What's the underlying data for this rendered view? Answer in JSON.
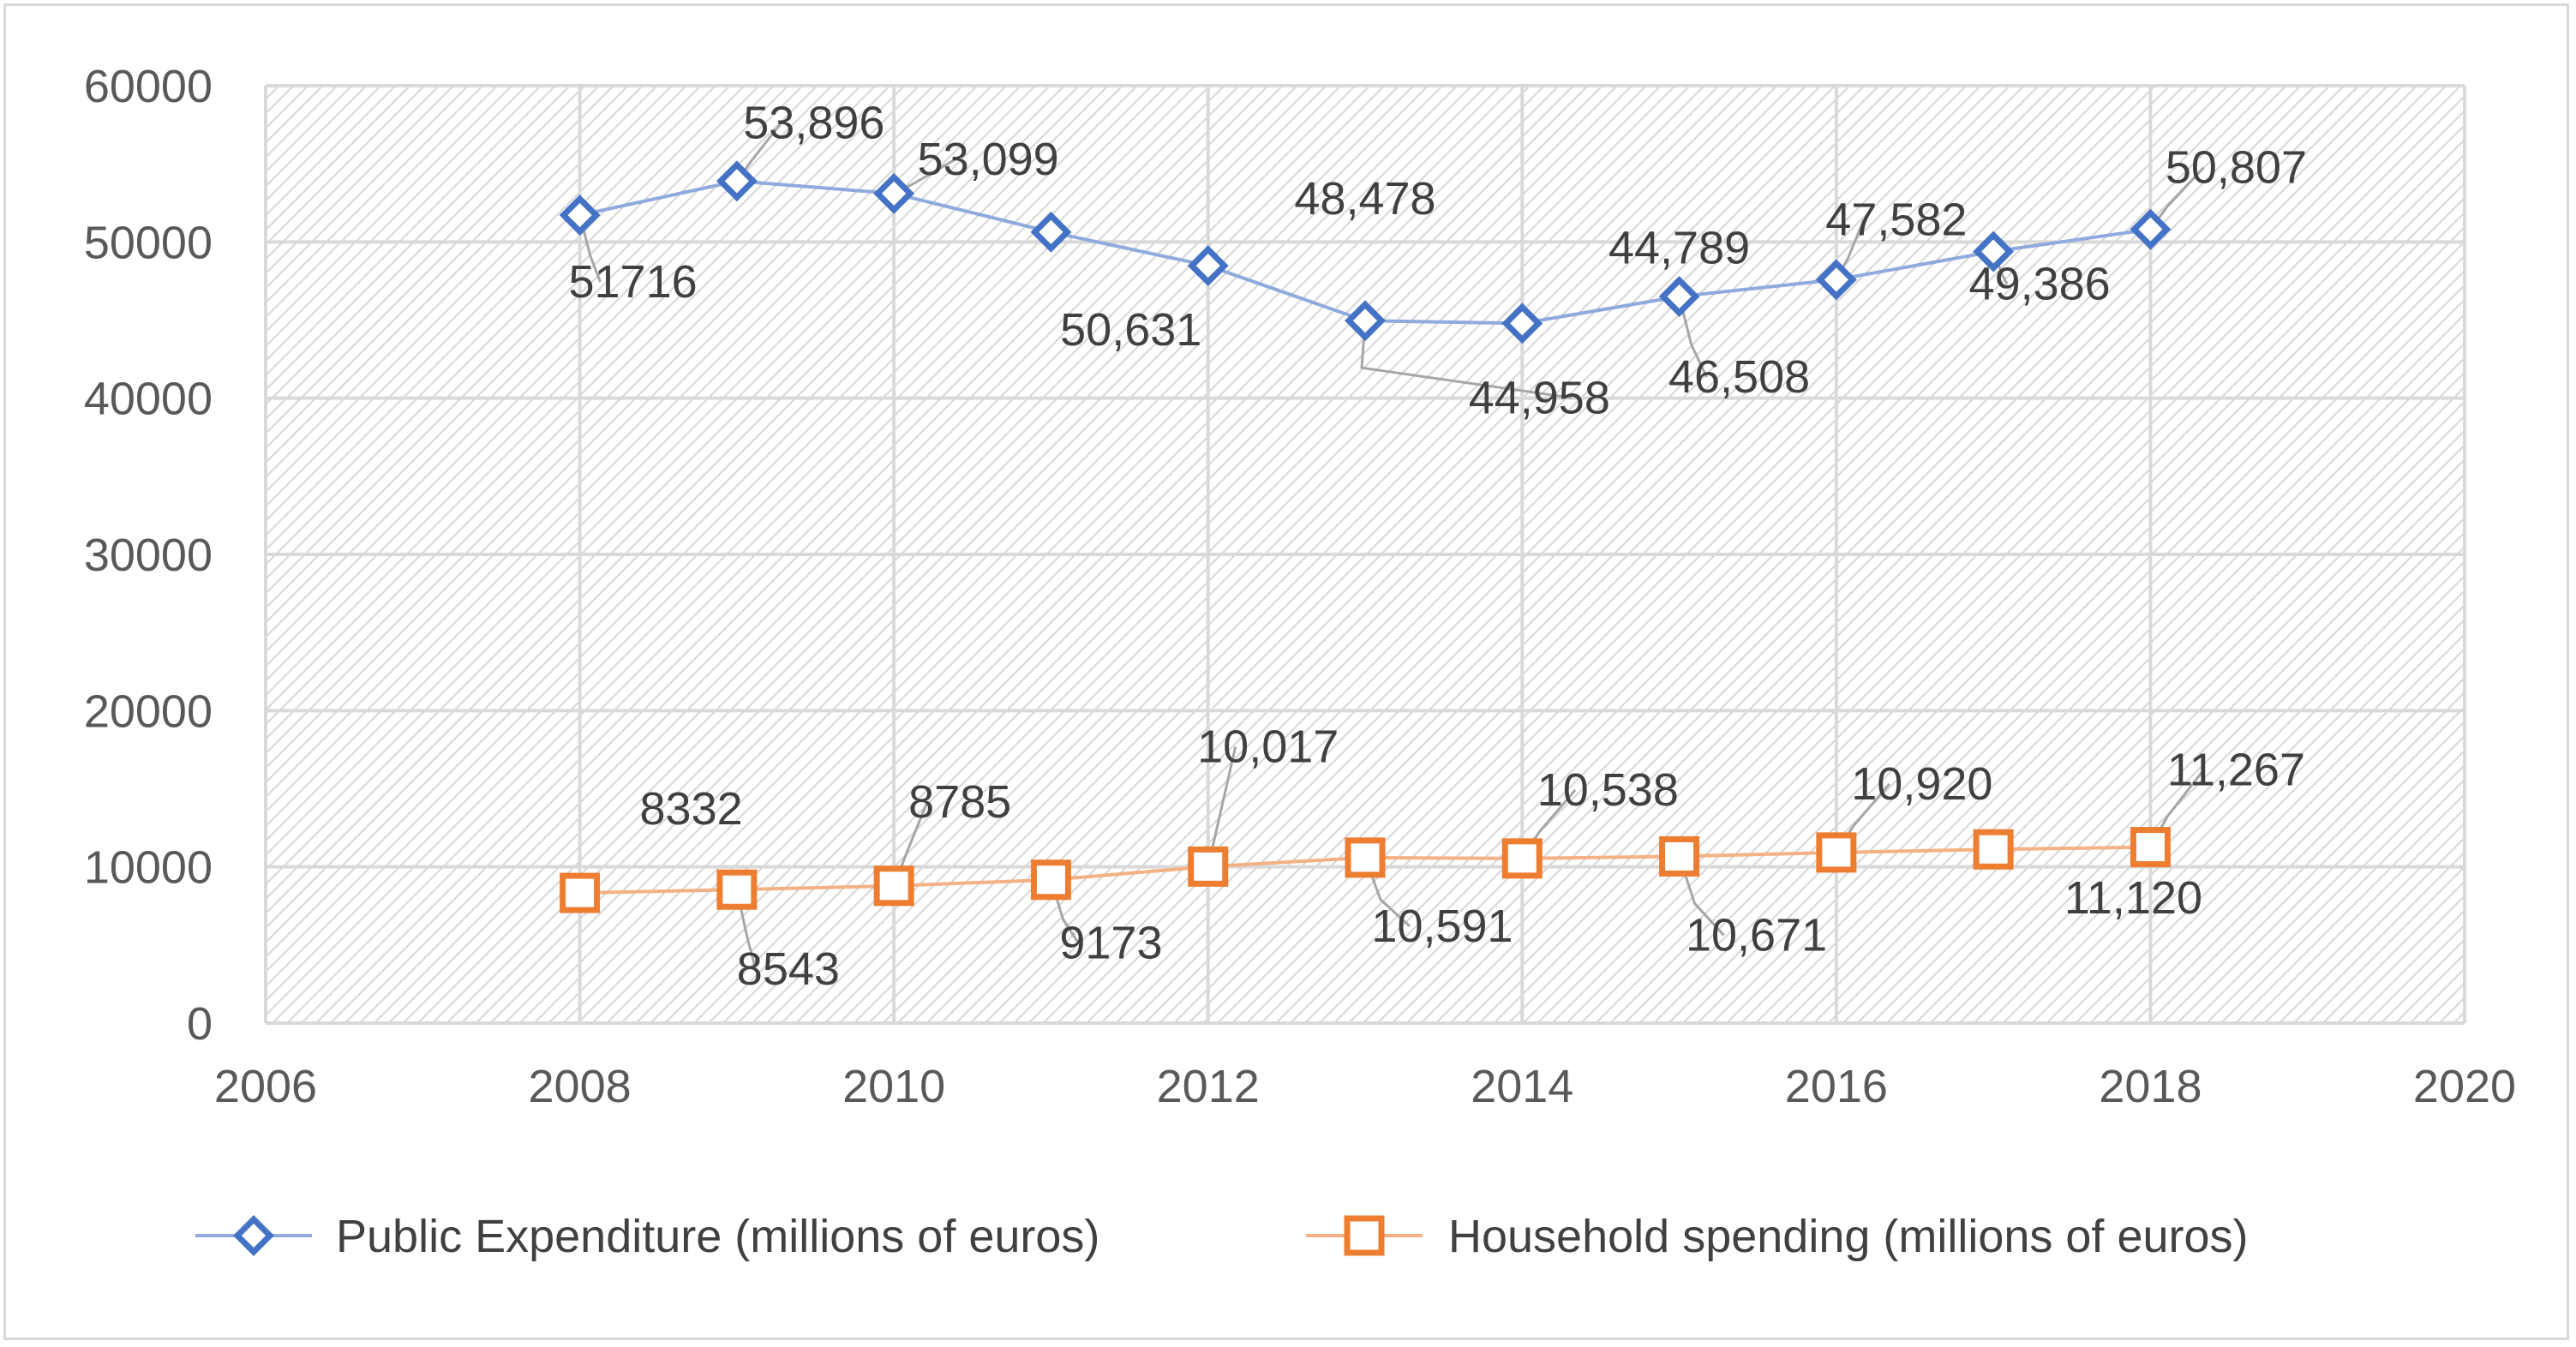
{
  "chart_data": {
    "type": "line",
    "title": "",
    "xlabel": "",
    "ylabel": "",
    "xlim": [
      2006,
      2020
    ],
    "ylim": [
      0,
      60000
    ],
    "x_ticks": [
      "2006",
      "2008",
      "2010",
      "2012",
      "2014",
      "2016",
      "2018",
      "2020"
    ],
    "y_ticks": [
      "0",
      "10000",
      "20000",
      "30000",
      "40000",
      "50000",
      "60000"
    ],
    "grid": true,
    "legend_position": "bottom",
    "x": [
      2008,
      2009,
      2010,
      2011,
      2012,
      2013,
      2014,
      2015,
      2016,
      2017,
      2018
    ],
    "series": [
      {
        "name": "Public Expenditure (millions of euros)",
        "color": "#4472c4",
        "line_color": "#8faadc",
        "marker": "diamond",
        "values": [
          51716,
          53896,
          53099,
          50631,
          48478,
          44958,
          44789,
          46508,
          47582,
          49386,
          50807
        ],
        "labels": [
          "51716",
          "53,896",
          "53,099",
          "50,631",
          "48,478",
          "44,958",
          "44,789",
          "46,508",
          "47,582",
          "49,386",
          "50,807"
        ]
      },
      {
        "name": "Household spending (millions of euros)",
        "color": "#ed7d31",
        "line_color": "#f4b183",
        "marker": "square",
        "values": [
          8332,
          8543,
          8785,
          9173,
          10017,
          10591,
          10538,
          10671,
          10920,
          11120,
          11267
        ],
        "labels": [
          "8332",
          "8543",
          "8785",
          "9173",
          "10,017",
          "10,591",
          "10,538",
          "10,671",
          "10,920",
          "11,120",
          "11,267"
        ]
      }
    ]
  }
}
